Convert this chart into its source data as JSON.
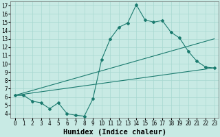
{
  "xlabel": "Humidex (Indice chaleur)",
  "bg_color": "#c8eae4",
  "line_color": "#1a7a6e",
  "grid_color": "#a8d8d0",
  "xlim": [
    -0.5,
    23.5
  ],
  "ylim": [
    3.5,
    17.5
  ],
  "xticks": [
    0,
    1,
    2,
    3,
    4,
    5,
    6,
    7,
    8,
    9,
    10,
    11,
    12,
    13,
    14,
    15,
    16,
    17,
    18,
    19,
    20,
    21,
    22,
    23
  ],
  "yticks": [
    4,
    5,
    6,
    7,
    8,
    9,
    10,
    11,
    12,
    13,
    14,
    15,
    16,
    17
  ],
  "zigzag_x": [
    0,
    1,
    2,
    3,
    4,
    5,
    6,
    7,
    8,
    9,
    10,
    11,
    12,
    13,
    14,
    15,
    16,
    17,
    18,
    19,
    20,
    21,
    22,
    23
  ],
  "zigzag_y": [
    6.2,
    6.2,
    5.5,
    5.3,
    4.6,
    5.3,
    4.0,
    3.8,
    3.7,
    5.8,
    10.5,
    13.0,
    14.4,
    14.9,
    17.1,
    15.3,
    15.0,
    15.2,
    13.8,
    13.1,
    11.5,
    10.3,
    9.6,
    9.5
  ],
  "line1_x": [
    0,
    23
  ],
  "line1_y": [
    6.2,
    9.5
  ],
  "line2_x": [
    0,
    23
  ],
  "line2_y": [
    6.2,
    13.0
  ],
  "xlabel_fontsize": 7.5,
  "tick_fontsize": 5.5
}
